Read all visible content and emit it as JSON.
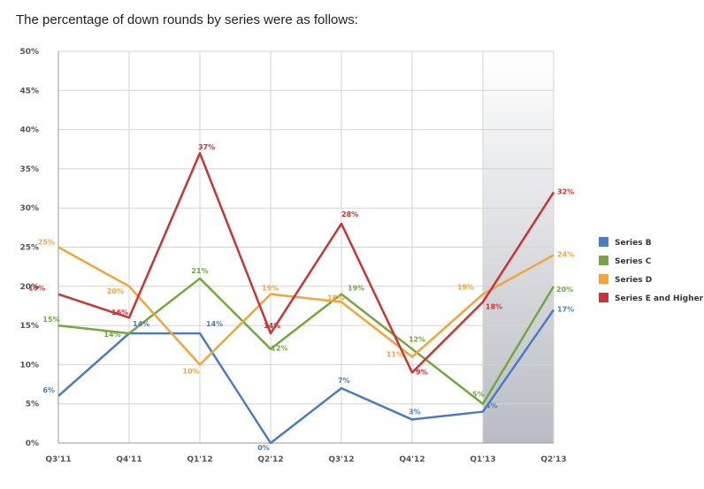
{
  "heading": "The percentage of down rounds by series were as follows:",
  "chart_data": {
    "type": "line",
    "title": "",
    "xlabel": "",
    "ylabel": "",
    "categories": [
      "Q3'11",
      "Q4'11",
      "Q1'12",
      "Q2'12",
      "Q3'12",
      "Q4'12",
      "Q1'13",
      "Q2'13"
    ],
    "ylim": [
      0,
      50
    ],
    "yticks": [
      0,
      5,
      10,
      15,
      20,
      25,
      30,
      35,
      40,
      45,
      50
    ],
    "ytick_labels": [
      "0%",
      "5%",
      "10%",
      "15%",
      "20%",
      "25%",
      "30%",
      "35%",
      "40%",
      "45%",
      "50%"
    ],
    "grid": true,
    "legend_position": "right",
    "highlight_category": "Q2'13",
    "series": [
      {
        "name": "Series B",
        "color": "#4a7cc4",
        "values": [
          6,
          14,
          14,
          0,
          7,
          3,
          4,
          17
        ],
        "labels": [
          "6%",
          "14%",
          "14%",
          "0%",
          "7%",
          "3%",
          "4%",
          "17%"
        ]
      },
      {
        "name": "Series C",
        "color": "#72a83e",
        "values": [
          15,
          14,
          21,
          12,
          19,
          12,
          5,
          20
        ],
        "labels": [
          "15%",
          "14%",
          "21%",
          "12%",
          "19%",
          "12%",
          "5%",
          "20%"
        ]
      },
      {
        "name": "Series D",
        "color": "#f5a43a",
        "values": [
          25,
          20,
          10,
          19,
          18,
          11,
          19,
          24
        ],
        "labels": [
          "25%",
          "20%",
          "10%",
          "19%",
          "18%",
          "11%",
          "19%",
          "24%"
        ]
      },
      {
        "name": "Series E and Higher",
        "color": "#cc3333",
        "values": [
          19,
          16,
          37,
          14,
          28,
          9,
          18,
          32
        ],
        "labels": [
          "19%",
          "16%",
          "37%",
          "14%",
          "28%",
          "9%",
          "18%",
          "32%"
        ]
      }
    ]
  }
}
